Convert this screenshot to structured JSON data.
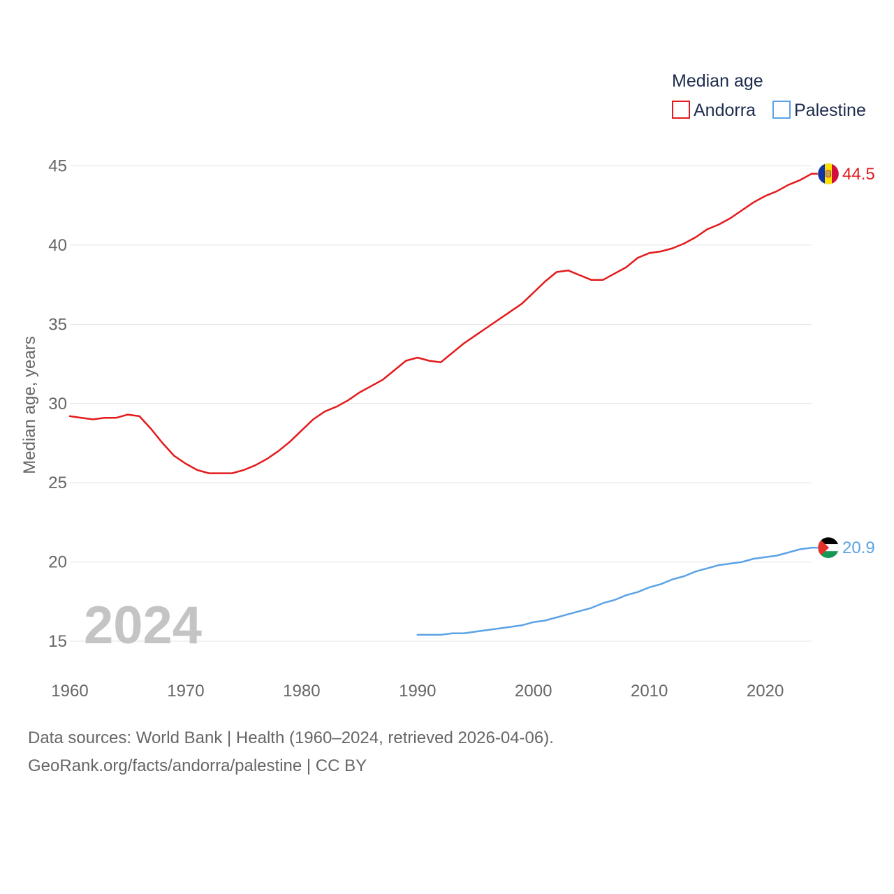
{
  "chart_data": {
    "type": "line",
    "legend_title": "Median age",
    "ylabel": "Median age, years",
    "xlabel": "",
    "xlim": [
      1960,
      2024
    ],
    "ylim": [
      12.5,
      47.5
    ],
    "yticks": [
      15,
      20,
      25,
      30,
      35,
      40,
      45
    ],
    "xticks": [
      1960,
      1970,
      1980,
      1990,
      2000,
      2010,
      2020
    ],
    "year_label": "2024",
    "legend_position": "top-right",
    "series": [
      {
        "name": "Andorra",
        "color": "#e41a1c",
        "end_label": "44.5",
        "flag_icon": "andorra-flag-icon",
        "x": [
          1960,
          1961,
          1962,
          1963,
          1964,
          1965,
          1966,
          1967,
          1968,
          1969,
          1970,
          1971,
          1972,
          1973,
          1974,
          1975,
          1976,
          1977,
          1978,
          1979,
          1980,
          1981,
          1982,
          1983,
          1984,
          1985,
          1986,
          1987,
          1988,
          1989,
          1990,
          1991,
          1992,
          1993,
          1994,
          1995,
          1996,
          1997,
          1998,
          1999,
          2000,
          2001,
          2002,
          2003,
          2004,
          2005,
          2006,
          2007,
          2008,
          2009,
          2010,
          2011,
          2012,
          2013,
          2014,
          2015,
          2016,
          2017,
          2018,
          2019,
          2020,
          2021,
          2022,
          2023,
          2024
        ],
        "values": [
          29.2,
          29.1,
          29.0,
          29.1,
          29.1,
          29.3,
          29.2,
          28.4,
          27.5,
          26.7,
          26.2,
          25.8,
          25.6,
          25.6,
          25.6,
          25.8,
          26.1,
          26.5,
          27.0,
          27.6,
          28.3,
          29.0,
          29.5,
          29.8,
          30.2,
          30.7,
          31.1,
          31.5,
          32.1,
          32.7,
          32.9,
          32.7,
          32.6,
          33.2,
          33.8,
          34.3,
          34.8,
          35.3,
          35.8,
          36.3,
          37.0,
          37.7,
          38.3,
          38.4,
          38.1,
          37.8,
          37.8,
          38.2,
          38.6,
          39.2,
          39.5,
          39.6,
          39.8,
          40.1,
          40.5,
          41.0,
          41.3,
          41.7,
          42.2,
          42.7,
          43.1,
          43.4,
          43.8,
          44.1,
          44.5
        ]
      },
      {
        "name": "Palestine",
        "color": "#5ba3e6",
        "end_label": "20.9",
        "flag_icon": "palestine-flag-icon",
        "x": [
          1990,
          1991,
          1992,
          1993,
          1994,
          1995,
          1996,
          1997,
          1998,
          1999,
          2000,
          2001,
          2002,
          2003,
          2004,
          2005,
          2006,
          2007,
          2008,
          2009,
          2010,
          2011,
          2012,
          2013,
          2014,
          2015,
          2016,
          2017,
          2018,
          2019,
          2020,
          2021,
          2022,
          2023,
          2024
        ],
        "values": [
          15.4,
          15.4,
          15.4,
          15.5,
          15.5,
          15.6,
          15.7,
          15.8,
          15.9,
          16.0,
          16.2,
          16.3,
          16.5,
          16.7,
          16.9,
          17.1,
          17.4,
          17.6,
          17.9,
          18.1,
          18.4,
          18.6,
          18.9,
          19.1,
          19.4,
          19.6,
          19.8,
          19.9,
          20.0,
          20.2,
          20.3,
          20.4,
          20.6,
          20.8,
          20.9
        ]
      }
    ]
  },
  "sources": {
    "line1": "Data sources: World Bank | Health (1960–2024, retrieved 2026-04-06).",
    "line2": "GeoRank.org/facts/andorra/palestine | CC BY"
  }
}
